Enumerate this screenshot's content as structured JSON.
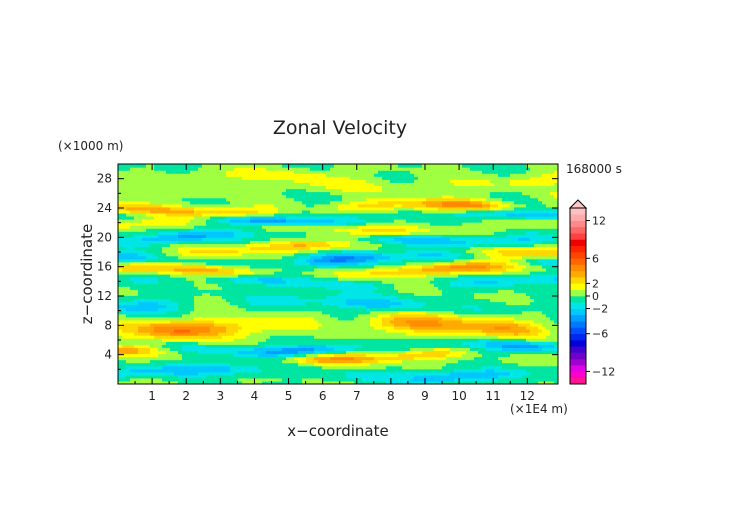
{
  "chart_data": {
    "type": "heatmap",
    "title": "Zonal Velocity",
    "xlabel": "x−coordinate",
    "ylabel": "z−coordinate",
    "x_unit_label": "(×1E4 m)",
    "y_unit_label": "(×1000 m)",
    "time_label": "168000 s",
    "xlim": [
      0,
      12.9
    ],
    "ylim": [
      0,
      30
    ],
    "x_ticks": [
      "1",
      "2",
      "3",
      "4",
      "5",
      "6",
      "7",
      "8",
      "9",
      "10",
      "11",
      "12"
    ],
    "y_ticks": [
      "4",
      "8",
      "12",
      "16",
      "20",
      "24",
      "28"
    ],
    "colorbar": {
      "levels": [
        -14,
        -13,
        -12,
        -11,
        -10,
        -9,
        -8,
        -7,
        -6,
        -5,
        -4,
        -3,
        -2,
        -1,
        0,
        1,
        2,
        3,
        4,
        5,
        6,
        7,
        8,
        9,
        10,
        11,
        12,
        13,
        14
      ],
      "colors": [
        "#ff1493",
        "#ff00cc",
        "#e000e6",
        "#a000d0",
        "#7000c8",
        "#4000d0",
        "#0000d8",
        "#0028f0",
        "#0050ff",
        "#0078ff",
        "#00a0ff",
        "#00c8ff",
        "#00e6e6",
        "#00e6a0",
        "#a0ff40",
        "#ffff00",
        "#ffd700",
        "#ffaa00",
        "#ff8c00",
        "#ff6600",
        "#ff4400",
        "#ff2200",
        "#ee0000",
        "#ff4040",
        "#ff6666",
        "#ff8888",
        "#ffaaaa",
        "#ffc0c0"
      ],
      "tick_labels": [
        "12",
        "6",
        "2",
        "0",
        "−2",
        "−6",
        "−12"
      ],
      "tick_values": [
        12,
        6,
        2,
        0,
        -2,
        -6,
        -12
      ]
    },
    "bands": [
      {
        "z": 1.5,
        "amp": -2.5,
        "w": 0.8
      },
      {
        "z": 4.0,
        "amp": 3.2,
        "w": 0.7
      },
      {
        "z": 5.0,
        "amp": -3.0,
        "w": 0.8
      },
      {
        "z": 8.0,
        "amp": 3.8,
        "w": 1.3
      },
      {
        "z": 11.0,
        "amp": -2.2,
        "w": 1.0
      },
      {
        "z": 14.0,
        "amp": -2.0,
        "w": 0.8
      },
      {
        "z": 15.5,
        "amp": 3.5,
        "w": 0.8
      },
      {
        "z": 17.0,
        "amp": -3.0,
        "w": 0.9
      },
      {
        "z": 18.5,
        "amp": 2.5,
        "w": 0.8
      },
      {
        "z": 20.0,
        "amp": -2.5,
        "w": 0.8
      },
      {
        "z": 21.5,
        "amp": 2.0,
        "w": 0.7
      },
      {
        "z": 22.8,
        "amp": -3.0,
        "w": 0.7
      },
      {
        "z": 24.0,
        "amp": 3.5,
        "w": 0.8
      },
      {
        "z": 26.5,
        "amp": 0.8,
        "w": 1.0
      },
      {
        "z": 28.0,
        "amp": 1.2,
        "w": 1.0
      }
    ]
  }
}
